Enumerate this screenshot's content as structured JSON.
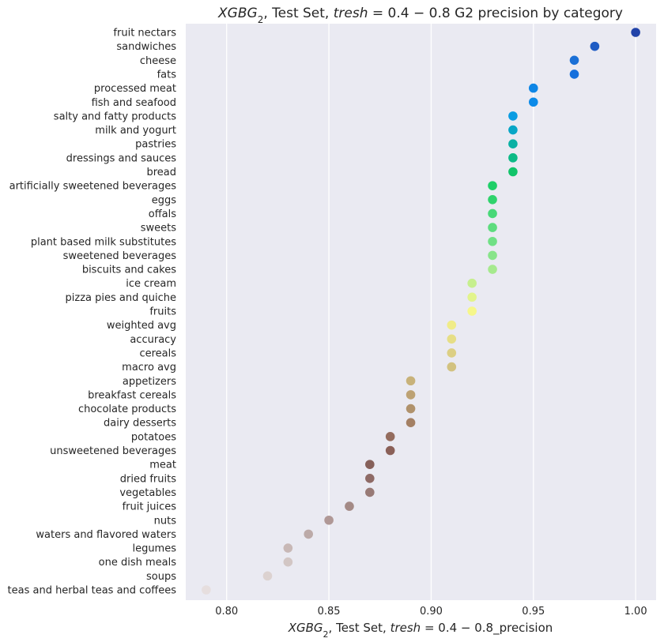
{
  "chart_data": {
    "type": "scatter",
    "title": {
      "model": "XGBG",
      "model_sub": "2",
      "mid": ", Test Set, ",
      "tresh": "tresh",
      "range": " = 0.4 − 0.8",
      "tail": " G2 precision by category"
    },
    "xlabel": {
      "model": "XGBG",
      "model_sub": "2",
      "mid": ", Test Set, ",
      "tresh": "tresh",
      "range": " = 0.4 − 0.8",
      "tail": "_precision"
    },
    "ylabel": "",
    "xlim": [
      0.78,
      1.01
    ],
    "xticks": [
      "0.80",
      "0.85",
      "0.90",
      "0.95",
      "1.00"
    ],
    "grid": true,
    "categories": [
      "fruit nectars",
      "sandwiches",
      "cheese",
      "fats",
      "processed meat",
      "fish and seafood",
      "salty and fatty products",
      "milk and yogurt",
      "pastries",
      "dressings and sauces",
      "bread",
      "artificially sweetened beverages",
      "eggs",
      "offals",
      "sweets",
      "plant based milk substitutes",
      "sweetened beverages",
      "biscuits and cakes",
      "ice cream",
      "pizza pies and quiche",
      "fruits",
      "weighted avg",
      "accuracy",
      "cereals",
      "macro avg",
      "appetizers",
      "breakfast cereals",
      "chocolate products",
      "dairy desserts",
      "potatoes",
      "unsweetened beverages",
      "meat",
      "dried fruits",
      "vegetables",
      "fruit juices",
      "nuts",
      "waters and flavored waters",
      "legumes",
      "one dish meals",
      "soups",
      "teas and herbal teas and coffees"
    ],
    "values": [
      1.0,
      0.98,
      0.97,
      0.97,
      0.95,
      0.95,
      0.94,
      0.94,
      0.94,
      0.94,
      0.94,
      0.93,
      0.93,
      0.93,
      0.93,
      0.93,
      0.93,
      0.93,
      0.92,
      0.92,
      0.92,
      0.91,
      0.91,
      0.91,
      0.91,
      0.89,
      0.89,
      0.89,
      0.89,
      0.88,
      0.88,
      0.87,
      0.87,
      0.87,
      0.86,
      0.85,
      0.84,
      0.83,
      0.83,
      0.82,
      0.79
    ],
    "colors": [
      "#2142a8",
      "#1f5cc4",
      "#1a6fd6",
      "#156fdc",
      "#0e86e6",
      "#0c8ae8",
      "#0a9ce2",
      "#08a6c6",
      "#0ab1a4",
      "#0cba86",
      "#12c46a",
      "#1fcf68",
      "#2fd36c",
      "#48d878",
      "#5ddc7e",
      "#70e085",
      "#88e48a",
      "#a6ea8e",
      "#c6ef8e",
      "#e2f48c",
      "#f6f78a",
      "#f0ec88",
      "#e6de86",
      "#dccf84",
      "#d2c280",
      "#c8b27a",
      "#bda274",
      "#b0926c",
      "#a48064",
      "#946c5e",
      "#8a6058",
      "#86605a",
      "#8e6a66",
      "#987a76",
      "#a48a86",
      "#b09896",
      "#bcaaa8",
      "#c8b8b6",
      "#d2c6c4",
      "#dcd2d0",
      "#e6dede"
    ]
  }
}
